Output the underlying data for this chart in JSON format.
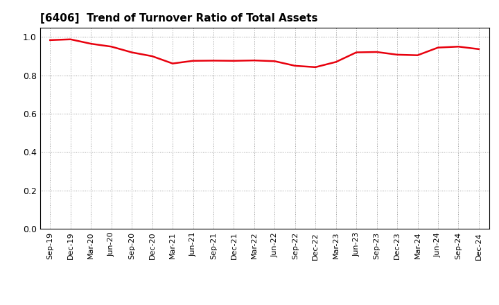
{
  "title": "[6406]  Trend of Turnover Ratio of Total Assets",
  "line_color": "#e8000d",
  "line_width": 1.8,
  "background_color": "#ffffff",
  "grid_color": "#999999",
  "ylim": [
    0.0,
    1.05
  ],
  "yticks": [
    0.0,
    0.2,
    0.4,
    0.6,
    0.8,
    1.0
  ],
  "xlabels": [
    "Sep-19",
    "Dec-19",
    "Mar-20",
    "Jun-20",
    "Sep-20",
    "Dec-20",
    "Mar-21",
    "Jun-21",
    "Sep-21",
    "Dec-21",
    "Mar-22",
    "Jun-22",
    "Sep-22",
    "Dec-22",
    "Mar-23",
    "Jun-23",
    "Sep-23",
    "Dec-23",
    "Mar-24",
    "Jun-24",
    "Sep-24",
    "Dec-24"
  ],
  "values": [
    0.984,
    0.988,
    0.965,
    0.95,
    0.92,
    0.9,
    0.862,
    0.876,
    0.877,
    0.876,
    0.878,
    0.874,
    0.85,
    0.843,
    0.87,
    0.92,
    0.922,
    0.908,
    0.905,
    0.945,
    0.95,
    0.937
  ]
}
